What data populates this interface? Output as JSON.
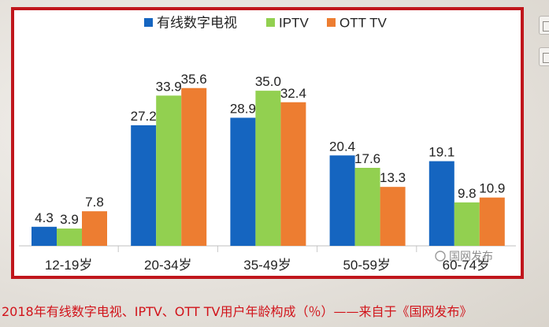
{
  "caption": "2018年有线数字电视、IPTV、OTT TV用户年龄构成（％）——来自于《国网发布》",
  "watermark": "国网发布",
  "colors": {
    "frame": "#c0161c",
    "caption": "#d1131a",
    "grid": "#d9d9d9"
  },
  "chart_data": {
    "type": "bar",
    "title": "",
    "xlabel": "",
    "ylabel": "",
    "categories": [
      "12-19岁",
      "20-34岁",
      "35-49岁",
      "50-59岁",
      "60-74岁"
    ],
    "series": [
      {
        "name": "有线数字电视",
        "color": "#1565c0",
        "values": [
          4.3,
          27.2,
          28.9,
          20.4,
          19.1
        ]
      },
      {
        "name": "IPTV",
        "color": "#92d050",
        "values": [
          3.9,
          33.9,
          35.0,
          17.6,
          9.8
        ]
      },
      {
        "name": "OTT TV",
        "color": "#ed7d31",
        "values": [
          7.8,
          35.6,
          32.4,
          13.3,
          10.9
        ]
      }
    ],
    "value_labels": [
      [
        "4.3",
        "27.2",
        "28.9",
        "20.4",
        "19.1"
      ],
      [
        "3.9",
        "33.9",
        "35.0",
        "17.6",
        "9.8"
      ],
      [
        "7.8",
        "35.6",
        "32.4",
        "13.3",
        "10.9"
      ]
    ],
    "ylim": [
      0,
      40
    ],
    "grid": false,
    "legend": "top-center"
  }
}
